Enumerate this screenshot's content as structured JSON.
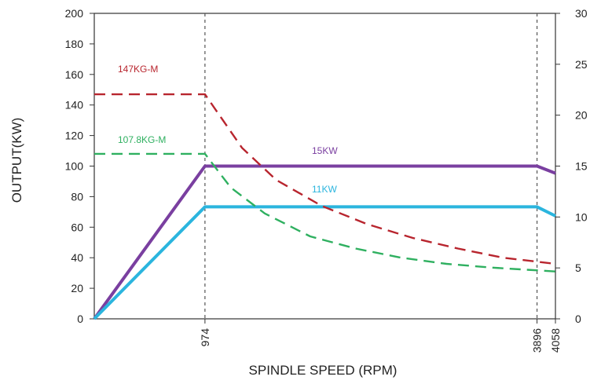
{
  "chart_data": {
    "type": "line",
    "xlabel": "SPINDLE SPEED (RPM)",
    "ylabel": "OUTPUT(KW)",
    "ylim": [
      0,
      200
    ],
    "y2lim": [
      0,
      30
    ],
    "yticks": [
      "0",
      "20",
      "40",
      "60",
      "80",
      "100",
      "120",
      "140",
      "160",
      "180",
      "200"
    ],
    "y2ticks": [
      "0",
      "5",
      "10",
      "15",
      "20",
      "25",
      "30"
    ],
    "xticks": [
      "974",
      "3896",
      "4058"
    ],
    "xdomain": [
      0,
      4058
    ],
    "vlines_x": [
      974,
      3896
    ],
    "grid": false,
    "series": [
      {
        "name": "15KW",
        "axis": "right",
        "style": "solid",
        "color": "#7a3fa0",
        "points": [
          [
            0,
            0
          ],
          [
            974,
            15
          ],
          [
            3896,
            15
          ],
          [
            4058,
            14.3
          ]
        ]
      },
      {
        "name": "11KW",
        "axis": "right",
        "style": "solid",
        "color": "#2bb5de",
        "points": [
          [
            0,
            0
          ],
          [
            974,
            11
          ],
          [
            3896,
            11
          ],
          [
            4058,
            10.1
          ]
        ]
      },
      {
        "name": "147KG-M",
        "axis": "left",
        "style": "dashed",
        "color": "#b8252e",
        "points": [
          [
            0,
            147
          ],
          [
            974,
            147
          ],
          [
            1300,
            112
          ],
          [
            1600,
            91
          ],
          [
            2000,
            74
          ],
          [
            2400,
            62
          ],
          [
            2800,
            53
          ],
          [
            3200,
            46
          ],
          [
            3600,
            40
          ],
          [
            4058,
            36
          ]
        ]
      },
      {
        "name": "107.8KG-M",
        "axis": "left",
        "style": "dashed",
        "color": "#2fb060",
        "points": [
          [
            0,
            108
          ],
          [
            974,
            108
          ],
          [
            1200,
            86
          ],
          [
            1500,
            69
          ],
          [
            1900,
            54
          ],
          [
            2300,
            46
          ],
          [
            2700,
            40
          ],
          [
            3100,
            36
          ],
          [
            3500,
            33.5
          ],
          [
            4058,
            31
          ]
        ]
      }
    ]
  }
}
